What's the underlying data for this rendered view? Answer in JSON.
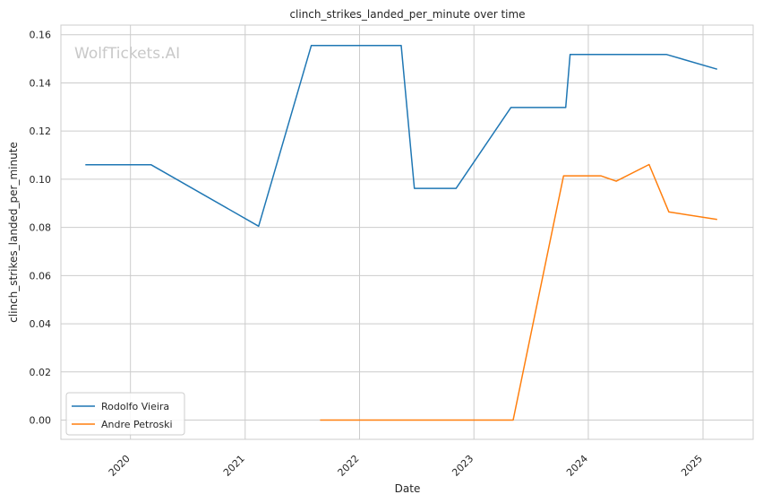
{
  "chart_data": {
    "type": "line",
    "title": "clinch_strikes_landed_per_minute over time",
    "xlabel": "Date",
    "ylabel": "clinch_strikes_landed_per_minute",
    "watermark": "WolfTickets.AI",
    "x_ticks": [
      "2020",
      "2021",
      "2022",
      "2023",
      "2024",
      "2025"
    ],
    "y_ticks": [
      "0.00",
      "0.02",
      "0.04",
      "0.06",
      "0.08",
      "0.10",
      "0.12",
      "0.14",
      "0.16"
    ],
    "ylim": [
      -0.008,
      0.164
    ],
    "xlim": [
      "2019-05-24",
      "2025-06-10"
    ],
    "grid": true,
    "legend_position": "lower-left",
    "series": [
      {
        "name": "Rodolfo Vieira",
        "color": "#1f77b4",
        "points": [
          [
            "2019-08-10",
            0.106
          ],
          [
            "2020-03-07",
            0.106
          ],
          [
            "2021-02-13",
            0.0805
          ],
          [
            "2021-07-31",
            0.1555
          ],
          [
            "2022-05-14",
            0.1555
          ],
          [
            "2022-06-25",
            0.0962
          ],
          [
            "2022-11-05",
            0.0962
          ],
          [
            "2023-04-29",
            0.1298
          ],
          [
            "2023-10-21",
            0.1298
          ],
          [
            "2023-11-04",
            0.1518
          ],
          [
            "2024-09-07",
            0.1518
          ],
          [
            "2025-02-15",
            0.1457
          ]
        ]
      },
      {
        "name": "Andre Petroski",
        "color": "#ff7f0e",
        "points": [
          [
            "2021-08-28",
            0.0
          ],
          [
            "2023-05-06",
            0.0
          ],
          [
            "2023-10-14",
            0.1014
          ],
          [
            "2024-02-10",
            0.1014
          ],
          [
            "2024-03-30",
            0.0992
          ],
          [
            "2024-07-13",
            0.1061
          ],
          [
            "2024-09-14",
            0.0864
          ],
          [
            "2025-02-15",
            0.0833
          ]
        ]
      }
    ]
  }
}
